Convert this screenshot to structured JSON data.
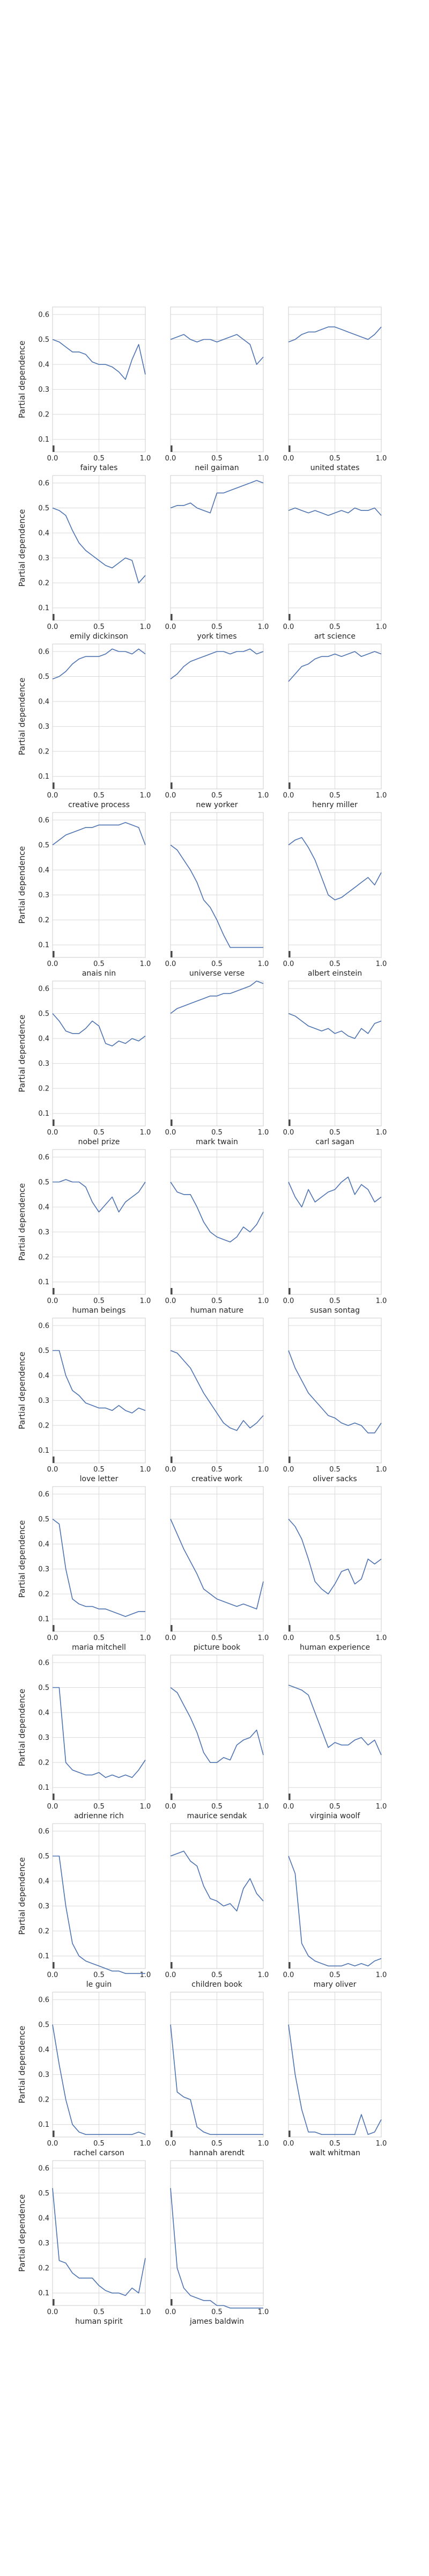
{
  "figure": {
    "ylabel": "Partial dependence",
    "background": "#ffffff",
    "grid_color": "#d9d9d9",
    "axes_color": "#cccccc",
    "line_color": "#4c72b0",
    "text_color": "#262626"
  },
  "chart_data": {
    "type": "line",
    "grid": true,
    "xlim": [
      0,
      1
    ],
    "ylim": [
      0.05,
      0.63
    ],
    "xticks": [
      "0.0",
      "0.5",
      "1.0"
    ],
    "yticks": [
      "0.1",
      "0.2",
      "0.3",
      "0.4",
      "0.5",
      "0.6"
    ],
    "ylabel": "Partial dependence",
    "panels": [
      {
        "xlabel": "fairy tales",
        "y": [
          0.5,
          0.49,
          0.47,
          0.45,
          0.45,
          0.44,
          0.41,
          0.4,
          0.4,
          0.39,
          0.37,
          0.34,
          0.42,
          0.48,
          0.36
        ]
      },
      {
        "xlabel": "neil gaiman",
        "y": [
          0.5,
          0.51,
          0.52,
          0.5,
          0.49,
          0.5,
          0.5,
          0.49,
          0.5,
          0.51,
          0.52,
          0.5,
          0.48,
          0.4,
          0.43
        ]
      },
      {
        "xlabel": "united states",
        "y": [
          0.49,
          0.5,
          0.52,
          0.53,
          0.53,
          0.54,
          0.55,
          0.55,
          0.54,
          0.53,
          0.52,
          0.51,
          0.5,
          0.52,
          0.55
        ]
      },
      {
        "xlabel": "emily dickinson",
        "y": [
          0.5,
          0.49,
          0.47,
          0.41,
          0.36,
          0.33,
          0.31,
          0.29,
          0.27,
          0.26,
          0.28,
          0.3,
          0.29,
          0.2,
          0.23
        ]
      },
      {
        "xlabel": "york times",
        "y": [
          0.5,
          0.51,
          0.51,
          0.52,
          0.5,
          0.49,
          0.48,
          0.56,
          0.56,
          0.57,
          0.58,
          0.59,
          0.6,
          0.61,
          0.6
        ]
      },
      {
        "xlabel": "art science",
        "y": [
          0.49,
          0.5,
          0.49,
          0.48,
          0.49,
          0.48,
          0.47,
          0.48,
          0.49,
          0.48,
          0.5,
          0.49,
          0.49,
          0.5,
          0.47
        ]
      },
      {
        "xlabel": "creative process",
        "y": [
          0.49,
          0.5,
          0.52,
          0.55,
          0.57,
          0.58,
          0.58,
          0.58,
          0.59,
          0.61,
          0.6,
          0.6,
          0.59,
          0.61,
          0.59
        ]
      },
      {
        "xlabel": "new yorker",
        "y": [
          0.49,
          0.51,
          0.54,
          0.56,
          0.57,
          0.58,
          0.59,
          0.6,
          0.6,
          0.59,
          0.6,
          0.6,
          0.61,
          0.59,
          0.6
        ]
      },
      {
        "xlabel": "henry miller",
        "y": [
          0.48,
          0.51,
          0.54,
          0.55,
          0.57,
          0.58,
          0.58,
          0.59,
          0.58,
          0.59,
          0.6,
          0.58,
          0.59,
          0.6,
          0.59
        ]
      },
      {
        "xlabel": "anais nin",
        "y": [
          0.5,
          0.52,
          0.54,
          0.55,
          0.56,
          0.57,
          0.57,
          0.58,
          0.58,
          0.58,
          0.58,
          0.59,
          0.58,
          0.57,
          0.5
        ]
      },
      {
        "xlabel": "universe verse",
        "y": [
          0.5,
          0.48,
          0.44,
          0.4,
          0.35,
          0.28,
          0.25,
          0.2,
          0.14,
          0.09,
          0.09,
          0.09,
          0.09,
          0.09,
          0.09
        ]
      },
      {
        "xlabel": "albert einstein",
        "y": [
          0.5,
          0.52,
          0.53,
          0.49,
          0.44,
          0.37,
          0.3,
          0.28,
          0.29,
          0.31,
          0.33,
          0.35,
          0.37,
          0.34,
          0.39
        ]
      },
      {
        "xlabel": "nobel prize",
        "y": [
          0.5,
          0.47,
          0.43,
          0.42,
          0.42,
          0.44,
          0.47,
          0.45,
          0.38,
          0.37,
          0.39,
          0.38,
          0.4,
          0.39,
          0.41
        ]
      },
      {
        "xlabel": "mark twain",
        "y": [
          0.5,
          0.52,
          0.53,
          0.54,
          0.55,
          0.56,
          0.57,
          0.57,
          0.58,
          0.58,
          0.59,
          0.6,
          0.61,
          0.63,
          0.62
        ]
      },
      {
        "xlabel": "carl sagan",
        "y": [
          0.5,
          0.49,
          0.47,
          0.45,
          0.44,
          0.43,
          0.44,
          0.42,
          0.43,
          0.41,
          0.4,
          0.44,
          0.42,
          0.46,
          0.47
        ]
      },
      {
        "xlabel": "human beings",
        "y": [
          0.5,
          0.5,
          0.51,
          0.5,
          0.5,
          0.48,
          0.42,
          0.38,
          0.41,
          0.44,
          0.38,
          0.42,
          0.44,
          0.46,
          0.5
        ]
      },
      {
        "xlabel": "human nature",
        "y": [
          0.5,
          0.46,
          0.45,
          0.45,
          0.4,
          0.34,
          0.3,
          0.28,
          0.27,
          0.26,
          0.28,
          0.32,
          0.3,
          0.33,
          0.38
        ]
      },
      {
        "xlabel": "susan sontag",
        "y": [
          0.5,
          0.44,
          0.4,
          0.47,
          0.42,
          0.44,
          0.46,
          0.47,
          0.5,
          0.52,
          0.45,
          0.49,
          0.47,
          0.42,
          0.44
        ]
      },
      {
        "xlabel": "love letter",
        "y": [
          0.5,
          0.5,
          0.4,
          0.34,
          0.32,
          0.29,
          0.28,
          0.27,
          0.27,
          0.26,
          0.28,
          0.26,
          0.25,
          0.27,
          0.26
        ]
      },
      {
        "xlabel": "creative work",
        "y": [
          0.5,
          0.49,
          0.46,
          0.43,
          0.38,
          0.33,
          0.29,
          0.25,
          0.21,
          0.19,
          0.18,
          0.22,
          0.19,
          0.21,
          0.24
        ]
      },
      {
        "xlabel": "oliver sacks",
        "y": [
          0.5,
          0.43,
          0.38,
          0.33,
          0.3,
          0.27,
          0.24,
          0.23,
          0.21,
          0.2,
          0.21,
          0.2,
          0.17,
          0.17,
          0.21
        ]
      },
      {
        "xlabel": "maria mitchell",
        "y": [
          0.5,
          0.48,
          0.3,
          0.18,
          0.16,
          0.15,
          0.15,
          0.14,
          0.14,
          0.13,
          0.12,
          0.11,
          0.12,
          0.13,
          0.13
        ]
      },
      {
        "xlabel": "picture book",
        "y": [
          0.5,
          0.44,
          0.38,
          0.33,
          0.28,
          0.22,
          0.2,
          0.18,
          0.17,
          0.16,
          0.15,
          0.16,
          0.15,
          0.14,
          0.25
        ]
      },
      {
        "xlabel": "human experience",
        "y": [
          0.5,
          0.47,
          0.42,
          0.34,
          0.25,
          0.22,
          0.2,
          0.24,
          0.29,
          0.3,
          0.24,
          0.26,
          0.34,
          0.32,
          0.34
        ]
      },
      {
        "xlabel": "adrienne rich",
        "y": [
          0.5,
          0.5,
          0.2,
          0.17,
          0.16,
          0.15,
          0.15,
          0.16,
          0.14,
          0.15,
          0.14,
          0.15,
          0.14,
          0.17,
          0.21
        ]
      },
      {
        "xlabel": "maurice sendak",
        "y": [
          0.5,
          0.48,
          0.43,
          0.38,
          0.32,
          0.24,
          0.2,
          0.2,
          0.22,
          0.21,
          0.27,
          0.29,
          0.3,
          0.33,
          0.23
        ]
      },
      {
        "xlabel": "virginia woolf",
        "y": [
          0.51,
          0.5,
          0.49,
          0.47,
          0.4,
          0.33,
          0.26,
          0.28,
          0.27,
          0.27,
          0.29,
          0.3,
          0.27,
          0.29,
          0.23
        ]
      },
      {
        "xlabel": "le guin",
        "y": [
          0.5,
          0.5,
          0.3,
          0.15,
          0.1,
          0.08,
          0.07,
          0.06,
          0.05,
          0.04,
          0.04,
          0.03,
          0.03,
          0.03,
          0.03
        ]
      },
      {
        "xlabel": "children book",
        "y": [
          0.5,
          0.51,
          0.52,
          0.48,
          0.46,
          0.38,
          0.33,
          0.32,
          0.3,
          0.31,
          0.28,
          0.37,
          0.41,
          0.35,
          0.32
        ]
      },
      {
        "xlabel": "mary oliver",
        "y": [
          0.5,
          0.43,
          0.15,
          0.1,
          0.08,
          0.07,
          0.06,
          0.06,
          0.06,
          0.07,
          0.06,
          0.07,
          0.06,
          0.08,
          0.09
        ]
      },
      {
        "xlabel": "rachel carson",
        "y": [
          0.5,
          0.34,
          0.2,
          0.1,
          0.07,
          0.06,
          0.06,
          0.06,
          0.06,
          0.06,
          0.06,
          0.06,
          0.06,
          0.07,
          0.06
        ]
      },
      {
        "xlabel": "hannah arendt",
        "y": [
          0.5,
          0.23,
          0.21,
          0.2,
          0.09,
          0.07,
          0.06,
          0.06,
          0.06,
          0.06,
          0.06,
          0.06,
          0.06,
          0.06,
          0.06
        ]
      },
      {
        "xlabel": "walt whitman",
        "y": [
          0.5,
          0.3,
          0.16,
          0.07,
          0.07,
          0.06,
          0.06,
          0.06,
          0.06,
          0.06,
          0.06,
          0.14,
          0.06,
          0.07,
          0.12
        ]
      },
      {
        "xlabel": "human spirit",
        "y": [
          0.52,
          0.23,
          0.22,
          0.18,
          0.16,
          0.16,
          0.16,
          0.13,
          0.11,
          0.1,
          0.1,
          0.09,
          0.12,
          0.1,
          0.24
        ]
      },
      {
        "xlabel": "james baldwin",
        "y": [
          0.52,
          0.2,
          0.12,
          0.09,
          0.08,
          0.07,
          0.07,
          0.05,
          0.05,
          0.04,
          0.04,
          0.04,
          0.04,
          0.04,
          0.04
        ]
      }
    ]
  }
}
